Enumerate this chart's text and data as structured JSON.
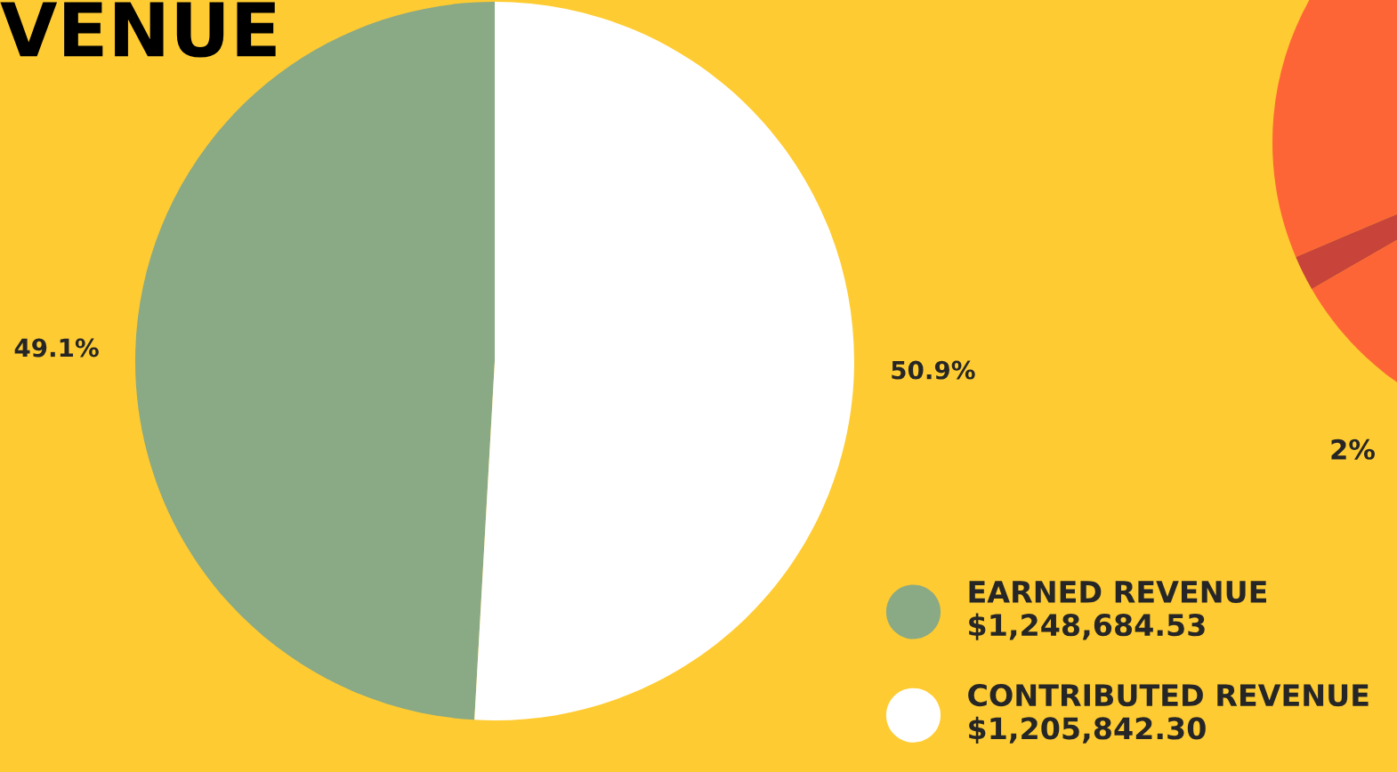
{
  "chart_data": {
    "type": "pie",
    "title": "VENUE",
    "categories": [
      "EARNED REVENUE\n$1,248,684.53",
      "CONTRIBUTED REVENUE\n$1,205,842.30"
    ],
    "values": [
      49.1,
      50.9
    ],
    "value_labels": [
      "49.1%",
      "50.9%"
    ],
    "colors": [
      "#8aa985",
      "#ffffff"
    ],
    "legend": "bottom right",
    "annotations": [
      "2%"
    ]
  }
}
